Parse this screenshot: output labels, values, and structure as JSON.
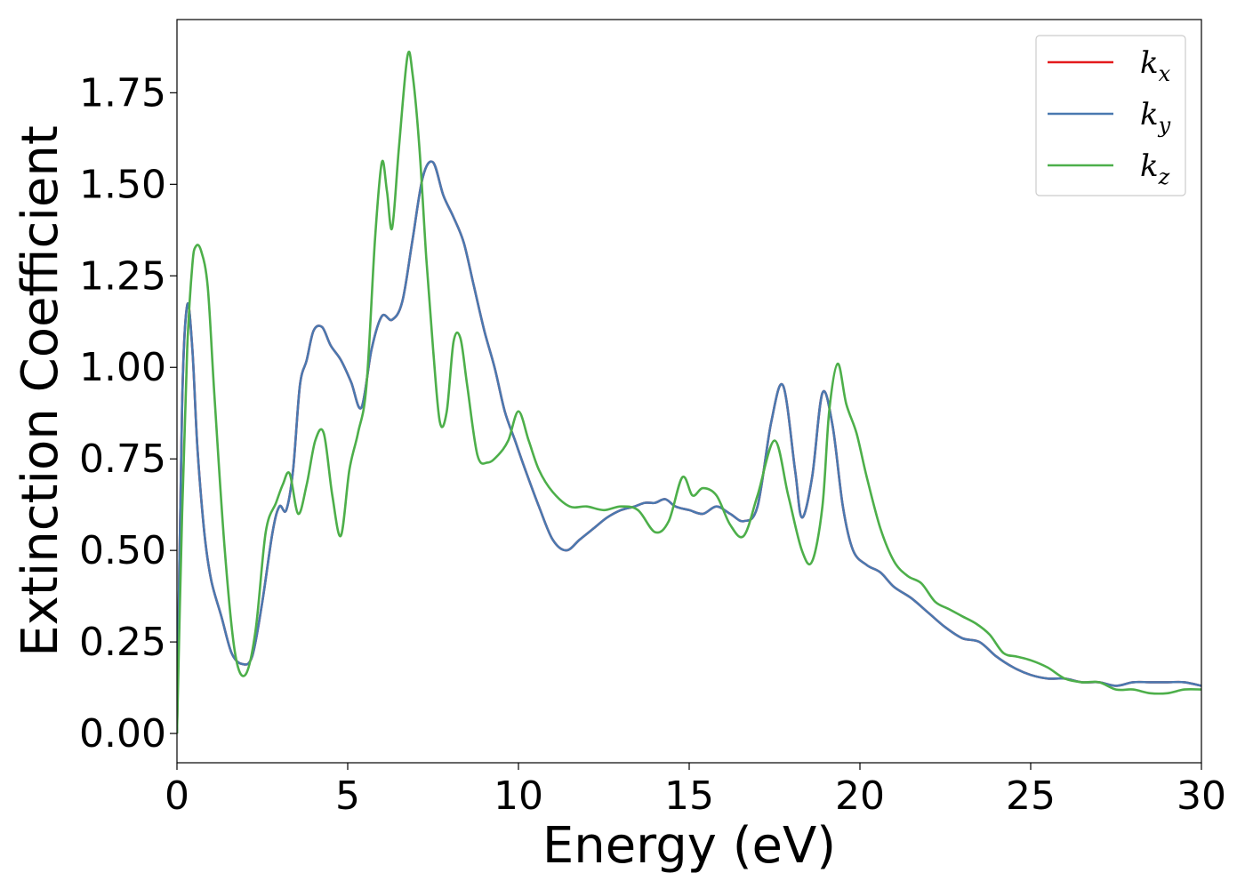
{
  "chart_data": {
    "type": "line",
    "title": "",
    "xlabel": "Energy (eV)",
    "ylabel": "Extinction Coefficient",
    "xlim": [
      0,
      30
    ],
    "ylim": [
      -0.08,
      1.95
    ],
    "xticks": [
      0,
      5,
      10,
      15,
      20,
      25,
      30
    ],
    "xtick_labels": [
      "0",
      "5",
      "10",
      "15",
      "20",
      "25",
      "30"
    ],
    "yticks": [
      0.0,
      0.25,
      0.5,
      0.75,
      1.0,
      1.25,
      1.5,
      1.75
    ],
    "ytick_labels": [
      "0.00",
      "0.25",
      "0.50",
      "0.75",
      "1.00",
      "1.25",
      "1.50",
      "1.75"
    ],
    "grid": false,
    "legend_position": "top-right",
    "series": [
      {
        "name": "k_x",
        "label_base": "k",
        "label_sub": "x",
        "color": "#e41a1c",
        "x": [
          0,
          0.15,
          0.3,
          0.45,
          0.6,
          0.8,
          1.0,
          1.3,
          1.6,
          1.9,
          2.2,
          2.5,
          2.8,
          3.0,
          3.2,
          3.4,
          3.6,
          3.8,
          4.0,
          4.25,
          4.5,
          4.8,
          5.1,
          5.4,
          5.7,
          6.0,
          6.3,
          6.6,
          6.9,
          7.2,
          7.5,
          7.8,
          8.1,
          8.4,
          8.7,
          9.0,
          9.3,
          9.6,
          9.9,
          10.2,
          10.6,
          11.0,
          11.4,
          11.8,
          12.2,
          12.6,
          13.0,
          13.4,
          13.7,
          14.0,
          14.3,
          14.6,
          15.0,
          15.4,
          15.8,
          16.2,
          16.6,
          17.0,
          17.4,
          17.75,
          18.1,
          18.3,
          18.6,
          18.9,
          19.2,
          19.5,
          19.8,
          20.2,
          20.6,
          21.0,
          21.5,
          22.0,
          22.5,
          23.0,
          23.5,
          24.0,
          24.5,
          25.0,
          25.5,
          26.0,
          26.5,
          27.0,
          27.5,
          28.0,
          28.5,
          29.0,
          29.5,
          30.0
        ],
        "y": [
          0.0,
          0.9,
          1.17,
          1.05,
          0.78,
          0.55,
          0.42,
          0.32,
          0.22,
          0.19,
          0.21,
          0.36,
          0.55,
          0.62,
          0.61,
          0.72,
          0.95,
          1.02,
          1.1,
          1.11,
          1.06,
          1.02,
          0.96,
          0.89,
          1.05,
          1.14,
          1.13,
          1.18,
          1.35,
          1.52,
          1.56,
          1.47,
          1.41,
          1.34,
          1.22,
          1.1,
          1.0,
          0.88,
          0.8,
          0.72,
          0.62,
          0.53,
          0.5,
          0.53,
          0.56,
          0.59,
          0.61,
          0.62,
          0.63,
          0.63,
          0.64,
          0.62,
          0.61,
          0.6,
          0.62,
          0.6,
          0.58,
          0.62,
          0.85,
          0.95,
          0.72,
          0.59,
          0.7,
          0.93,
          0.84,
          0.62,
          0.5,
          0.46,
          0.44,
          0.4,
          0.37,
          0.33,
          0.29,
          0.26,
          0.25,
          0.21,
          0.18,
          0.16,
          0.15,
          0.15,
          0.14,
          0.14,
          0.13,
          0.14,
          0.14,
          0.14,
          0.14,
          0.13
        ]
      },
      {
        "name": "k_y",
        "label_base": "k",
        "label_sub": "y",
        "color": "#4a79b0",
        "x": [
          0,
          0.15,
          0.3,
          0.45,
          0.6,
          0.8,
          1.0,
          1.3,
          1.6,
          1.9,
          2.2,
          2.5,
          2.8,
          3.0,
          3.2,
          3.4,
          3.6,
          3.8,
          4.0,
          4.25,
          4.5,
          4.8,
          5.1,
          5.4,
          5.7,
          6.0,
          6.3,
          6.6,
          6.9,
          7.2,
          7.5,
          7.8,
          8.1,
          8.4,
          8.7,
          9.0,
          9.3,
          9.6,
          9.9,
          10.2,
          10.6,
          11.0,
          11.4,
          11.8,
          12.2,
          12.6,
          13.0,
          13.4,
          13.7,
          14.0,
          14.3,
          14.6,
          15.0,
          15.4,
          15.8,
          16.2,
          16.6,
          17.0,
          17.4,
          17.75,
          18.1,
          18.3,
          18.6,
          18.9,
          19.2,
          19.5,
          19.8,
          20.2,
          20.6,
          21.0,
          21.5,
          22.0,
          22.5,
          23.0,
          23.5,
          24.0,
          24.5,
          25.0,
          25.5,
          26.0,
          26.5,
          27.0,
          27.5,
          28.0,
          28.5,
          29.0,
          29.5,
          30.0
        ],
        "y": [
          0.0,
          0.9,
          1.17,
          1.05,
          0.78,
          0.55,
          0.42,
          0.32,
          0.22,
          0.19,
          0.21,
          0.36,
          0.55,
          0.62,
          0.61,
          0.72,
          0.95,
          1.02,
          1.1,
          1.11,
          1.06,
          1.02,
          0.96,
          0.89,
          1.05,
          1.14,
          1.13,
          1.18,
          1.35,
          1.52,
          1.56,
          1.47,
          1.41,
          1.34,
          1.22,
          1.1,
          1.0,
          0.88,
          0.8,
          0.72,
          0.62,
          0.53,
          0.5,
          0.53,
          0.56,
          0.59,
          0.61,
          0.62,
          0.63,
          0.63,
          0.64,
          0.62,
          0.61,
          0.6,
          0.62,
          0.6,
          0.58,
          0.62,
          0.85,
          0.95,
          0.72,
          0.59,
          0.7,
          0.93,
          0.84,
          0.62,
          0.5,
          0.46,
          0.44,
          0.4,
          0.37,
          0.33,
          0.29,
          0.26,
          0.25,
          0.21,
          0.18,
          0.16,
          0.15,
          0.15,
          0.14,
          0.14,
          0.13,
          0.14,
          0.14,
          0.14,
          0.14,
          0.13
        ]
      },
      {
        "name": "k_z",
        "label_base": "k",
        "label_sub": "z",
        "color": "#4daf4a",
        "x": [
          0,
          0.15,
          0.3,
          0.45,
          0.55,
          0.7,
          0.9,
          1.1,
          1.4,
          1.7,
          2.0,
          2.3,
          2.6,
          2.9,
          3.1,
          3.3,
          3.55,
          3.8,
          4.05,
          4.3,
          4.55,
          4.8,
          5.05,
          5.3,
          5.55,
          5.8,
          6.0,
          6.15,
          6.3,
          6.5,
          6.75,
          6.9,
          7.1,
          7.3,
          7.5,
          7.7,
          7.9,
          8.1,
          8.3,
          8.5,
          8.8,
          9.1,
          9.4,
          9.7,
          10.0,
          10.3,
          10.6,
          11.0,
          11.5,
          12.0,
          12.5,
          13.0,
          13.5,
          14.0,
          14.4,
          14.8,
          15.1,
          15.4,
          15.8,
          16.2,
          16.6,
          17.0,
          17.5,
          17.9,
          18.3,
          18.6,
          18.9,
          19.1,
          19.35,
          19.6,
          19.9,
          20.2,
          20.6,
          21.0,
          21.4,
          21.8,
          22.2,
          22.6,
          23.0,
          23.4,
          23.8,
          24.2,
          24.6,
          25.0,
          25.5,
          26.0,
          26.5,
          27.0,
          27.5,
          28.0,
          28.5,
          29.0,
          29.5,
          30.0
        ],
        "y": [
          0.0,
          0.6,
          1.05,
          1.28,
          1.33,
          1.32,
          1.22,
          0.92,
          0.5,
          0.22,
          0.16,
          0.28,
          0.55,
          0.63,
          0.68,
          0.71,
          0.6,
          0.68,
          0.8,
          0.82,
          0.65,
          0.54,
          0.72,
          0.82,
          0.95,
          1.35,
          1.56,
          1.48,
          1.38,
          1.6,
          1.85,
          1.8,
          1.6,
          1.3,
          1.05,
          0.85,
          0.88,
          1.07,
          1.08,
          0.95,
          0.76,
          0.74,
          0.76,
          0.8,
          0.88,
          0.8,
          0.72,
          0.66,
          0.62,
          0.62,
          0.61,
          0.62,
          0.61,
          0.55,
          0.58,
          0.7,
          0.65,
          0.67,
          0.65,
          0.57,
          0.54,
          0.65,
          0.8,
          0.65,
          0.5,
          0.47,
          0.62,
          0.88,
          1.01,
          0.9,
          0.82,
          0.7,
          0.56,
          0.47,
          0.43,
          0.41,
          0.36,
          0.34,
          0.32,
          0.3,
          0.27,
          0.22,
          0.21,
          0.2,
          0.18,
          0.15,
          0.14,
          0.14,
          0.12,
          0.12,
          0.11,
          0.11,
          0.12,
          0.12
        ]
      }
    ]
  }
}
